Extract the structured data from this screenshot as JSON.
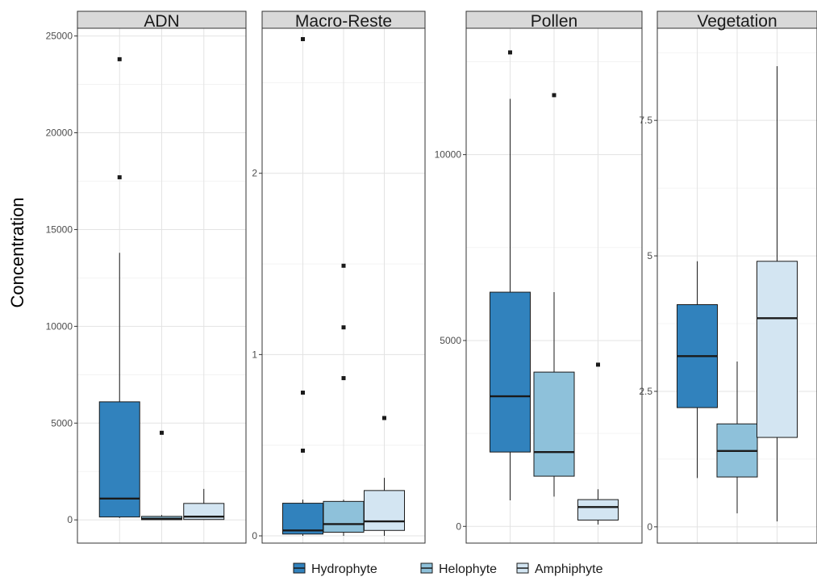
{
  "chart_data": {
    "type": "boxplot",
    "ylabel": "Concentration",
    "xlabel": "",
    "grid": true,
    "legend_position": "bottom",
    "categories": [
      "Hydrophyte",
      "Helophyte",
      "Amphiphyte"
    ],
    "colors": [
      "#3182bd",
      "#8ec1da",
      "#d3e5f2"
    ],
    "legend": [
      {
        "label": "Hydrophyte",
        "color": "#3182bd"
      },
      {
        "label": "Helophyte",
        "color": "#8ec1da"
      },
      {
        "label": "Amphiphyte",
        "color": "#d3e5f2"
      }
    ],
    "panels": [
      {
        "title": "ADN",
        "ylim": [
          -1200,
          25400
        ],
        "yticks": [
          0,
          5000,
          10000,
          15000,
          20000,
          25000
        ],
        "ytick_labels": [
          "0",
          "5000",
          "10000",
          "15000",
          "20000",
          "25000"
        ],
        "boxes": [
          {
            "category": "Hydrophyte",
            "low": 100,
            "q1": 150,
            "median": 1100,
            "q3": 6100,
            "high": 13800,
            "outliers": [
              17700,
              23800
            ]
          },
          {
            "category": "Helophyte",
            "low": 0,
            "q1": 10,
            "median": 60,
            "q3": 180,
            "high": 250,
            "outliers": [
              4500
            ]
          },
          {
            "category": "Amphiphyte",
            "low": 0,
            "q1": 20,
            "median": 170,
            "q3": 850,
            "high": 1600,
            "outliers": []
          }
        ]
      },
      {
        "title": "Macro-Reste",
        "ylim": [
          -0.04,
          2.8
        ],
        "yticks": [
          0,
          1,
          2
        ],
        "ytick_labels": [
          "0",
          "1",
          "2"
        ],
        "boxes": [
          {
            "category": "Hydrophyte",
            "low": 0,
            "q1": 0.01,
            "median": 0.03,
            "q3": 0.18,
            "high": 0.2,
            "outliers": [
              0.47,
              0.79,
              2.74
            ]
          },
          {
            "category": "Helophyte",
            "low": 0,
            "q1": 0.02,
            "median": 0.065,
            "q3": 0.19,
            "high": 0.2,
            "outliers": [
              0.87,
              1.15,
              1.49
            ]
          },
          {
            "category": "Amphiphyte",
            "low": 0,
            "q1": 0.03,
            "median": 0.08,
            "q3": 0.25,
            "high": 0.32,
            "outliers": [
              0.65
            ]
          }
        ]
      },
      {
        "title": "Pollen",
        "ylim": [
          -450,
          13400
        ],
        "yticks": [
          0,
          5000,
          10000
        ],
        "ytick_labels": [
          "0",
          "5000",
          "10000"
        ],
        "boxes": [
          {
            "category": "Hydrophyte",
            "low": 700,
            "q1": 2000,
            "median": 3500,
            "q3": 6300,
            "high": 11500,
            "outliers": [
              12750
            ]
          },
          {
            "category": "Helophyte",
            "low": 800,
            "q1": 1350,
            "median": 2000,
            "q3": 4150,
            "high": 6300,
            "outliers": [
              11600
            ]
          },
          {
            "category": "Amphiphyte",
            "low": 50,
            "q1": 170,
            "median": 520,
            "q3": 720,
            "high": 1000,
            "outliers": [
              4350
            ]
          }
        ]
      },
      {
        "title": "Vegetation",
        "ylim": [
          -0.3,
          9.2
        ],
        "yticks": [
          0,
          2.5,
          5,
          7.5
        ],
        "ytick_labels": [
          "0",
          "2.5",
          "5",
          "7.5"
        ],
        "boxes": [
          {
            "category": "Hydrophyte",
            "low": 0.9,
            "q1": 2.2,
            "median": 3.15,
            "q3": 4.1,
            "high": 4.9,
            "outliers": []
          },
          {
            "category": "Helophyte",
            "low": 0.25,
            "q1": 0.92,
            "median": 1.4,
            "q3": 1.9,
            "high": 3.05,
            "outliers": []
          },
          {
            "category": "Amphiphyte",
            "low": 0.1,
            "q1": 1.65,
            "median": 3.85,
            "q3": 4.9,
            "high": 8.5,
            "outliers": []
          }
        ]
      }
    ]
  }
}
